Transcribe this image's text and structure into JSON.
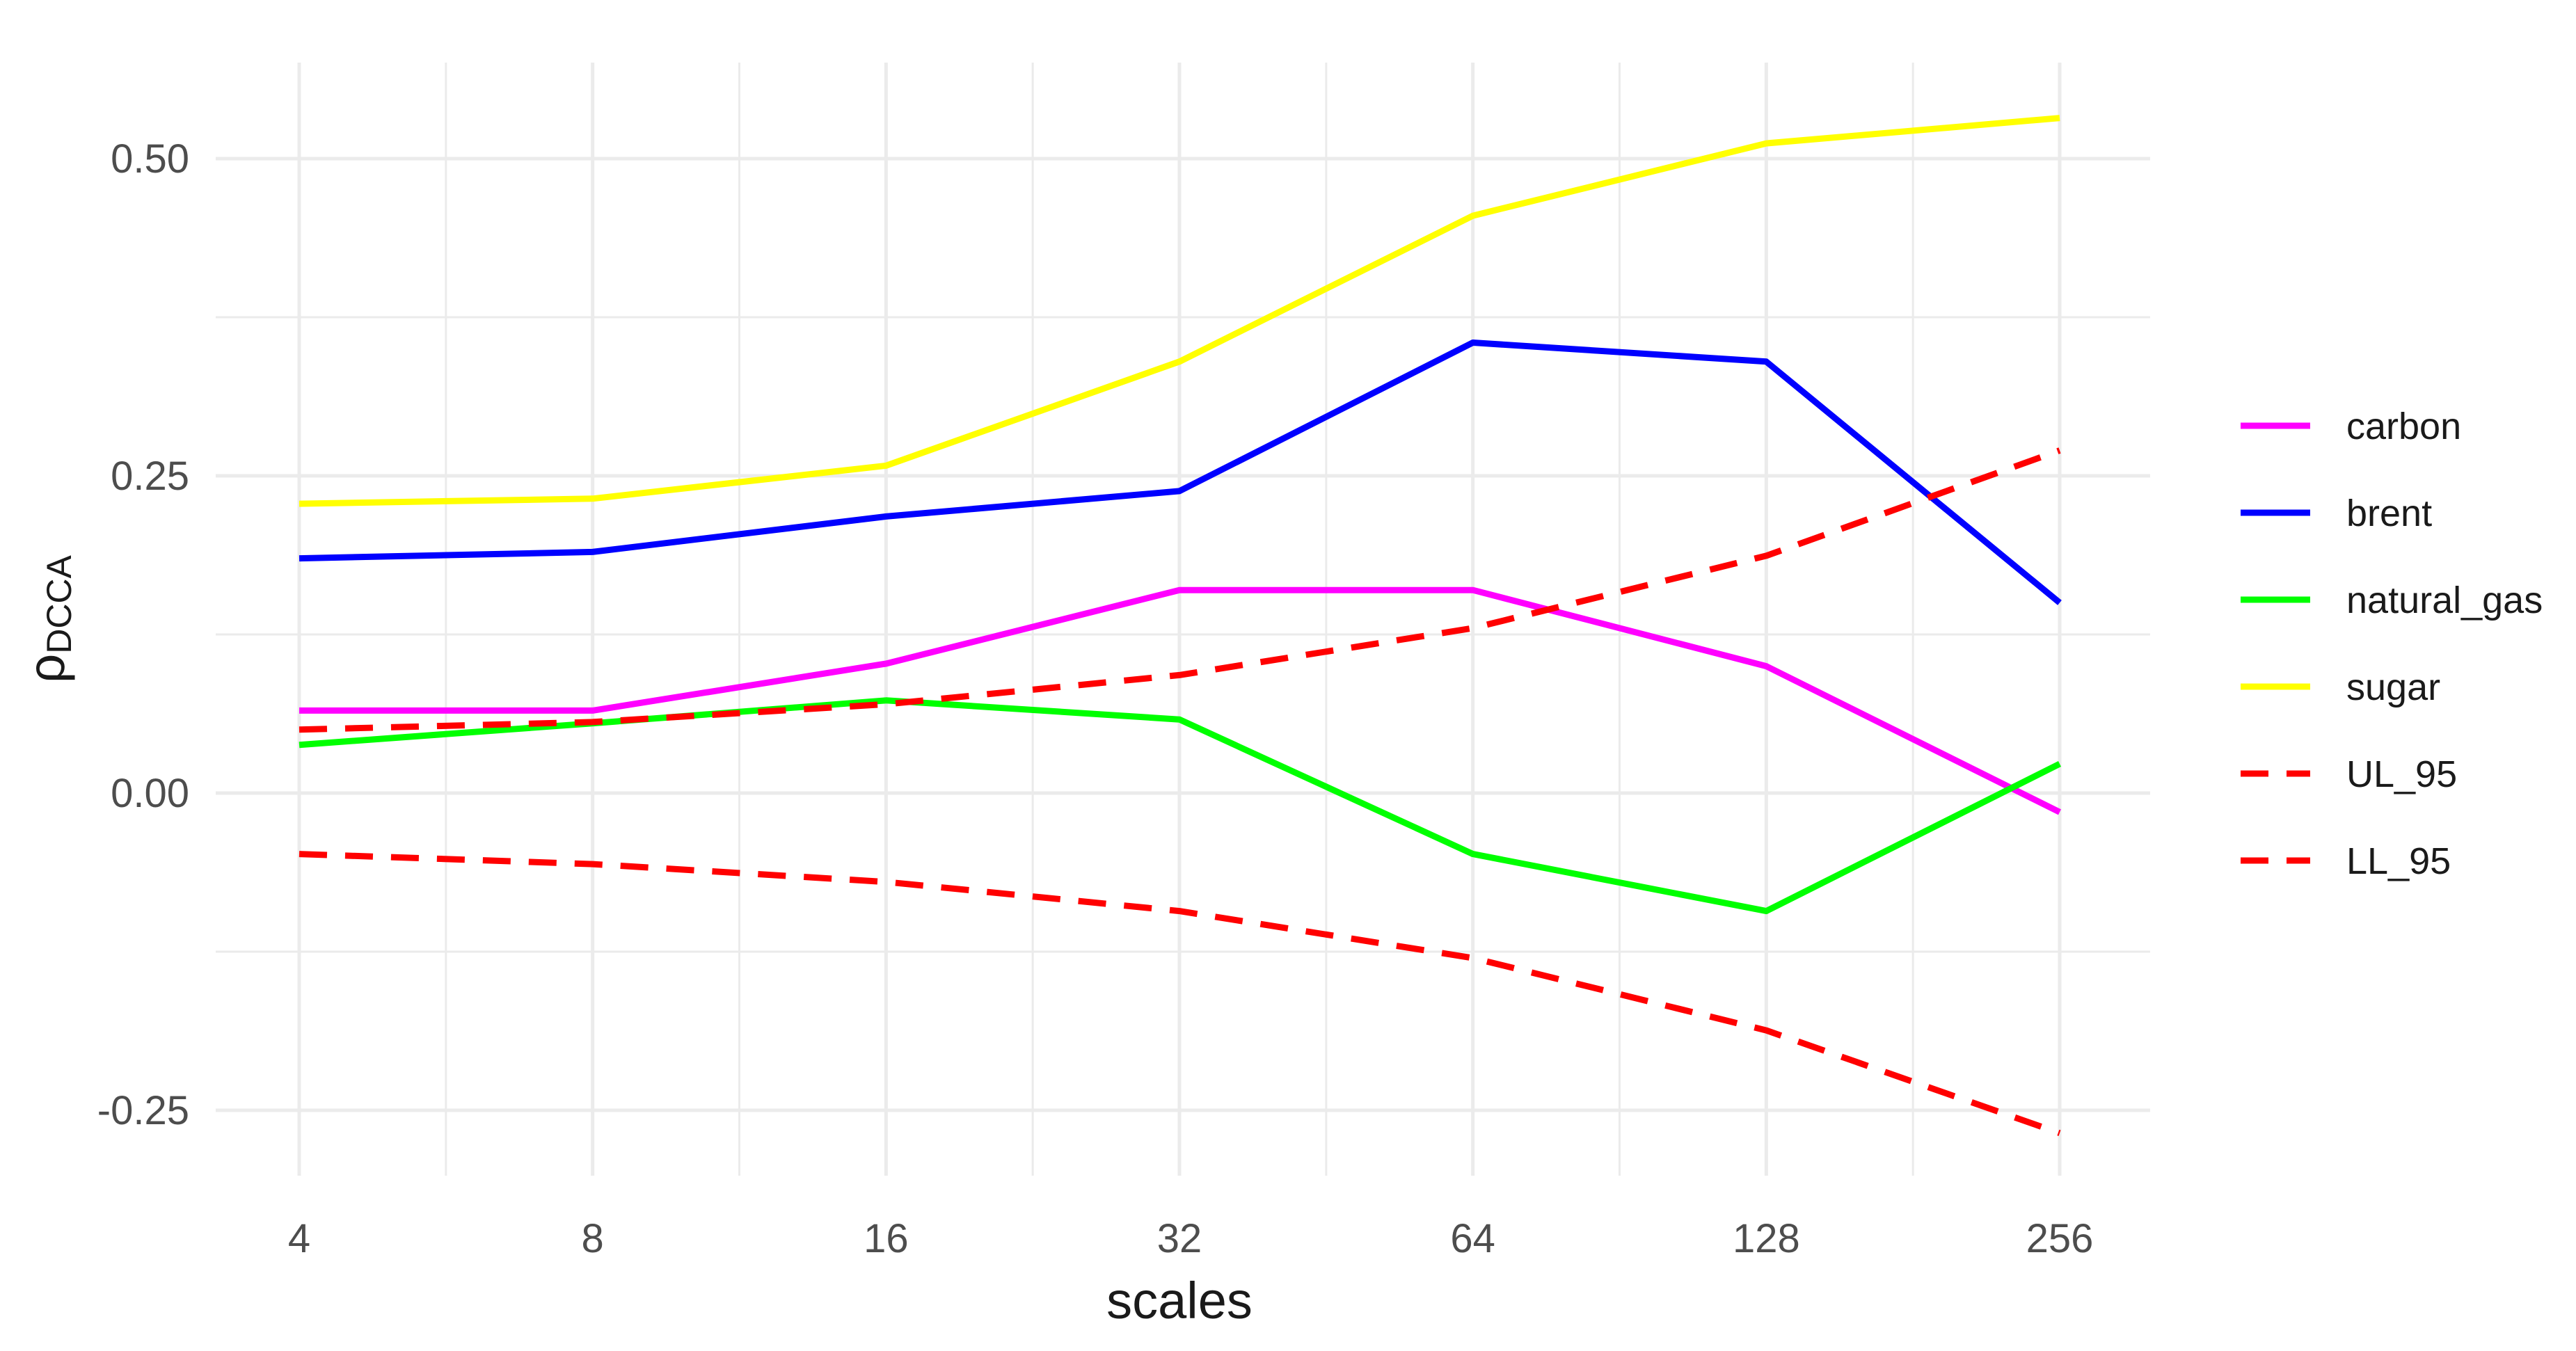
{
  "chart_data": {
    "type": "line",
    "xlabel": "scales",
    "ylabel": "ρ",
    "ylabel_subscript": "DCCA",
    "x_scale": "log2",
    "x": [
      4,
      8,
      16,
      32,
      64,
      128,
      256
    ],
    "x_tick_labels": [
      "4",
      "8",
      "16",
      "32",
      "64",
      "128",
      "256"
    ],
    "xlim": [
      4,
      256
    ],
    "ylim": [
      -0.3,
      0.57
    ],
    "y_ticks": [
      0.5,
      0.25,
      0.0,
      -0.25
    ],
    "y_tick_labels": [
      "0.50",
      "0.25",
      "0.00",
      "-0.25"
    ],
    "grid": true,
    "legend_position": "right",
    "series": [
      {
        "name": "carbon",
        "color": "#FF00FF",
        "dash": "solid",
        "values": [
          0.065,
          0.065,
          0.102,
          0.16,
          0.16,
          0.1,
          -0.015
        ]
      },
      {
        "name": "brent",
        "color": "#0000FF",
        "dash": "solid",
        "values": [
          0.185,
          0.19,
          0.218,
          0.238,
          0.355,
          0.34,
          0.15
        ]
      },
      {
        "name": "natural_gas",
        "color": "#00FF00",
        "dash": "solid",
        "values": [
          0.038,
          0.055,
          0.073,
          0.058,
          -0.048,
          -0.093,
          0.023
        ]
      },
      {
        "name": "sugar",
        "color": "#FFFF00",
        "dash": "solid",
        "values": [
          0.228,
          0.232,
          0.258,
          0.34,
          0.455,
          0.512,
          0.532
        ]
      },
      {
        "name": "UL_95",
        "color": "#FF0000",
        "dash": "dashed",
        "values": [
          0.05,
          0.056,
          0.07,
          0.093,
          0.13,
          0.187,
          0.27
        ]
      },
      {
        "name": "LL_95",
        "color": "#FF0000",
        "dash": "dashed",
        "values": [
          -0.048,
          -0.056,
          -0.07,
          -0.093,
          -0.13,
          -0.187,
          -0.268
        ]
      }
    ]
  }
}
